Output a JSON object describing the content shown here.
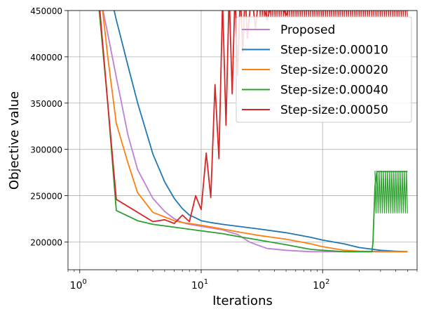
{
  "chart_data": {
    "type": "line",
    "title": "",
    "xlabel": "Iterations",
    "ylabel": "Objective value",
    "xscale": "log",
    "xlim": [
      0.8,
      600
    ],
    "ylim": [
      170000,
      450000
    ],
    "grid": true,
    "legend_position": "upper-right",
    "x_ticks": [
      1,
      10,
      100
    ],
    "x_tick_labels": [
      {
        "base": "10",
        "exp": "0"
      },
      {
        "base": "10",
        "exp": "1"
      },
      {
        "base": "10",
        "exp": "2"
      }
    ],
    "y_ticks": [
      200000,
      250000,
      300000,
      350000,
      400000,
      450000
    ],
    "y_tick_labels": [
      "200000",
      "250000",
      "300000",
      "350000",
      "400000",
      "450000"
    ],
    "series": [
      {
        "name": "Proposed",
        "color": "#bf7fd6",
        "points": [
          [
            1.3,
            520000
          ],
          [
            1.5,
            460000
          ],
          [
            1.7,
            425000
          ],
          [
            2,
            378000
          ],
          [
            2.5,
            315000
          ],
          [
            3,
            278000
          ],
          [
            4,
            247000
          ],
          [
            5,
            233000
          ],
          [
            6,
            225000
          ],
          [
            7,
            221000
          ],
          [
            8,
            219000
          ],
          [
            10,
            217000
          ],
          [
            15,
            213000
          ],
          [
            20,
            208000
          ],
          [
            25,
            200000
          ],
          [
            30,
            196000
          ],
          [
            35,
            193000
          ],
          [
            50,
            191000
          ],
          [
            80,
            189500
          ],
          [
            500,
            189500
          ]
        ]
      },
      {
        "name": "Step-size:0.00010",
        "color": "#1f77b4",
        "points": [
          [
            1.7,
            480000
          ],
          [
            2,
            440000
          ],
          [
            2.5,
            390000
          ],
          [
            3,
            350000
          ],
          [
            4,
            295000
          ],
          [
            5,
            265000
          ],
          [
            6,
            247000
          ],
          [
            7,
            236000
          ],
          [
            8,
            229000
          ],
          [
            9,
            226000
          ],
          [
            10,
            223000
          ],
          [
            12,
            221000
          ],
          [
            15,
            219000
          ],
          [
            20,
            217000
          ],
          [
            30,
            214000
          ],
          [
            50,
            210000
          ],
          [
            80,
            205000
          ],
          [
            100,
            202000
          ],
          [
            150,
            198000
          ],
          [
            200,
            194000
          ],
          [
            300,
            191000
          ],
          [
            400,
            190000
          ],
          [
            500,
            189500
          ]
        ]
      },
      {
        "name": "Step-size:0.00020",
        "color": "#ff7f0e",
        "points": [
          [
            1.4,
            500000
          ],
          [
            1.7,
            400000
          ],
          [
            2,
            328000
          ],
          [
            2.5,
            285000
          ],
          [
            3,
            253000
          ],
          [
            4,
            232000
          ],
          [
            5,
            227000
          ],
          [
            6,
            223000
          ],
          [
            7,
            221000
          ],
          [
            8,
            220000
          ],
          [
            10,
            218000
          ],
          [
            15,
            214000
          ],
          [
            20,
            211000
          ],
          [
            30,
            207000
          ],
          [
            50,
            203000
          ],
          [
            80,
            198000
          ],
          [
            100,
            195000
          ],
          [
            150,
            191000
          ],
          [
            200,
            190000
          ],
          [
            500,
            189500
          ]
        ]
      },
      {
        "name": "Step-size:0.00040",
        "color": "#2ca02c",
        "points": [
          [
            1.4,
            470000
          ],
          [
            1.7,
            350000
          ],
          [
            2,
            234000
          ],
          [
            3,
            223000
          ],
          [
            4,
            219000
          ],
          [
            6,
            216000
          ],
          [
            10,
            212000
          ],
          [
            15,
            209000
          ],
          [
            20,
            206000
          ],
          [
            30,
            202000
          ],
          [
            50,
            197000
          ],
          [
            80,
            192000
          ],
          [
            100,
            191000
          ],
          [
            150,
            189500
          ],
          [
            200,
            189500
          ],
          [
            255,
            189500
          ],
          [
            260,
            200000
          ],
          [
            270,
            260000
          ],
          [
            280,
            276000
          ],
          [
            500,
            276000
          ]
        ],
        "oscillation_band": {
          "x_start": 270,
          "x_end": 500,
          "low": 231000,
          "high": 277000
        }
      },
      {
        "name": "Step-size:0.00050",
        "color": "#d62728",
        "points": [
          [
            1.4,
            480000
          ],
          [
            1.7,
            350000
          ],
          [
            2,
            246000
          ],
          [
            3,
            232000
          ],
          [
            4,
            222000
          ],
          [
            5,
            224000
          ],
          [
            6,
            220000
          ],
          [
            7,
            229000
          ],
          [
            8,
            222000
          ],
          [
            9,
            250000
          ],
          [
            10,
            235000
          ],
          [
            11,
            296000
          ],
          [
            12,
            248000
          ],
          [
            13,
            370000
          ],
          [
            14,
            290000
          ],
          [
            15,
            460000
          ],
          [
            16,
            326000
          ],
          [
            17,
            470000
          ],
          [
            18,
            360000
          ],
          [
            19,
            470000
          ],
          [
            20,
            380000
          ],
          [
            21,
            470000
          ],
          [
            22,
            405000
          ],
          [
            23,
            470000
          ],
          [
            24,
            420000
          ],
          [
            26,
            470000
          ],
          [
            28,
            430000
          ],
          [
            30,
            470000
          ],
          [
            35,
            440000
          ],
          [
            40,
            470000
          ],
          [
            50,
            445000
          ],
          [
            60,
            470000
          ],
          [
            500,
            470000
          ]
        ],
        "oscillation_band": {
          "x_start": 30,
          "x_end": 500,
          "low": 443000,
          "high": 470000
        }
      }
    ]
  }
}
